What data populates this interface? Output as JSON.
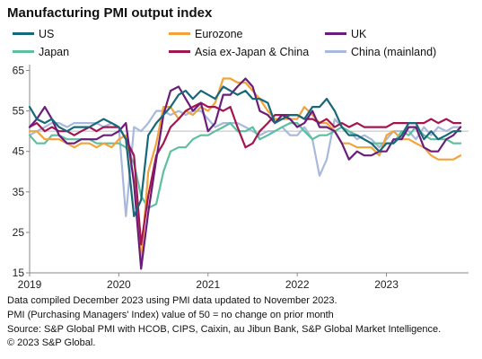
{
  "title": "Manufacturing PMI output index",
  "chart_data": {
    "type": "line",
    "title": "Manufacturing PMI output index",
    "xlabel": "",
    "ylabel": "",
    "x_ticks": [
      "2019",
      "2020",
      "2021",
      "2022",
      "2023"
    ],
    "y_ticks": [
      15,
      25,
      35,
      45,
      55,
      65
    ],
    "ylim": [
      15,
      66
    ],
    "xlim": [
      2019.0,
      2023.92
    ],
    "reference_line": 50,
    "grid": false,
    "legend_position": "top",
    "series": [
      {
        "name": "US",
        "color": "#17687a",
        "x": [
          2019.0,
          2019.08,
          2019.17,
          2019.25,
          2019.33,
          2019.42,
          2019.5,
          2019.58,
          2019.67,
          2019.75,
          2019.83,
          2019.92,
          2020.0,
          2020.08,
          2020.17,
          2020.25,
          2020.33,
          2020.42,
          2020.5,
          2020.58,
          2020.67,
          2020.75,
          2020.83,
          2020.92,
          2021.0,
          2021.08,
          2021.17,
          2021.25,
          2021.33,
          2021.42,
          2021.5,
          2021.58,
          2021.67,
          2021.75,
          2021.83,
          2021.92,
          2022.0,
          2022.08,
          2022.17,
          2022.25,
          2022.33,
          2022.42,
          2022.5,
          2022.58,
          2022.67,
          2022.75,
          2022.83,
          2022.92,
          2023.0,
          2023.08,
          2023.17,
          2023.25,
          2023.33,
          2023.42,
          2023.5,
          2023.58,
          2023.67,
          2023.75,
          2023.83
        ],
        "values": [
          56,
          53,
          52,
          53,
          51,
          50,
          51,
          51,
          51,
          52,
          53,
          52,
          51,
          48,
          29,
          33,
          49,
          52,
          54,
          56,
          59,
          60,
          58,
          60,
          59,
          58,
          61,
          60,
          59,
          60,
          58,
          58,
          57,
          52,
          53,
          54,
          54,
          53,
          56,
          56,
          58,
          55,
          51,
          49,
          49,
          48,
          47,
          45,
          47,
          47,
          49,
          52,
          52,
          48,
          50,
          48,
          49,
          50,
          50
        ]
      },
      {
        "name": "Eurozone",
        "color": "#f2a33a",
        "x": [
          2019.0,
          2019.08,
          2019.17,
          2019.25,
          2019.33,
          2019.42,
          2019.5,
          2019.58,
          2019.67,
          2019.75,
          2019.83,
          2019.92,
          2020.0,
          2020.08,
          2020.17,
          2020.25,
          2020.33,
          2020.42,
          2020.5,
          2020.58,
          2020.67,
          2020.75,
          2020.83,
          2020.92,
          2021.0,
          2021.08,
          2021.17,
          2021.25,
          2021.33,
          2021.42,
          2021.5,
          2021.58,
          2021.67,
          2021.75,
          2021.83,
          2021.92,
          2022.0,
          2022.08,
          2022.17,
          2022.25,
          2022.33,
          2022.42,
          2022.5,
          2022.58,
          2022.67,
          2022.75,
          2022.83,
          2022.92,
          2023.0,
          2023.08,
          2023.17,
          2023.25,
          2023.33,
          2023.42,
          2023.5,
          2023.58,
          2023.67,
          2023.75,
          2023.83
        ],
        "values": [
          50,
          50,
          48,
          48,
          48,
          47,
          46,
          47,
          47,
          46,
          47,
          46,
          48,
          49,
          38,
          18,
          40,
          47,
          56,
          56,
          53,
          55,
          54,
          56,
          55,
          57,
          63,
          63,
          62,
          62,
          60,
          58,
          55,
          53,
          53,
          53,
          53,
          56,
          54,
          52,
          52,
          50,
          47,
          47,
          46,
          46,
          46,
          44,
          49,
          50,
          48,
          48,
          47,
          46,
          44,
          43,
          43,
          43,
          44
        ]
      },
      {
        "name": "UK",
        "color": "#6b1d7c",
        "x": [
          2019.0,
          2019.08,
          2019.17,
          2019.25,
          2019.33,
          2019.42,
          2019.5,
          2019.58,
          2019.67,
          2019.75,
          2019.83,
          2019.92,
          2020.0,
          2020.08,
          2020.17,
          2020.25,
          2020.33,
          2020.42,
          2020.5,
          2020.58,
          2020.67,
          2020.75,
          2020.83,
          2020.92,
          2021.0,
          2021.08,
          2021.17,
          2021.25,
          2021.33,
          2021.42,
          2021.5,
          2021.58,
          2021.67,
          2021.75,
          2021.83,
          2021.92,
          2022.0,
          2022.08,
          2022.17,
          2022.25,
          2022.33,
          2022.42,
          2022.5,
          2022.58,
          2022.67,
          2022.75,
          2022.83,
          2022.92,
          2023.0,
          2023.08,
          2023.17,
          2023.25,
          2023.33,
          2023.42,
          2023.5,
          2023.58,
          2023.67,
          2023.75,
          2023.83
        ],
        "values": [
          51,
          53,
          56,
          53,
          49,
          47,
          47,
          48,
          48,
          48,
          49,
          49,
          50,
          52,
          37,
          16,
          30,
          43,
          54,
          60,
          61,
          58,
          55,
          57,
          50,
          52,
          59,
          59,
          61,
          63,
          61,
          55,
          54,
          52,
          54,
          53,
          51,
          52,
          55,
          51,
          51,
          50,
          47,
          43,
          45,
          44,
          44,
          45,
          45,
          48,
          48,
          51,
          51,
          46,
          45,
          45,
          48,
          49,
          51
        ]
      },
      {
        "name": "Japan",
        "color": "#5cbf9f",
        "x": [
          2019.0,
          2019.08,
          2019.17,
          2019.25,
          2019.33,
          2019.42,
          2019.5,
          2019.58,
          2019.67,
          2019.75,
          2019.83,
          2019.92,
          2020.0,
          2020.08,
          2020.17,
          2020.25,
          2020.33,
          2020.42,
          2020.5,
          2020.58,
          2020.67,
          2020.75,
          2020.83,
          2020.92,
          2021.0,
          2021.08,
          2021.17,
          2021.25,
          2021.33,
          2021.42,
          2021.5,
          2021.58,
          2021.67,
          2021.75,
          2021.83,
          2021.92,
          2022.0,
          2022.08,
          2022.17,
          2022.25,
          2022.33,
          2022.42,
          2022.5,
          2022.58,
          2022.67,
          2022.75,
          2022.83,
          2022.92,
          2023.0,
          2023.08,
          2023.17,
          2023.25,
          2023.33,
          2023.42,
          2023.5,
          2023.58,
          2023.67,
          2023.75,
          2023.83
        ],
        "values": [
          49,
          47,
          47,
          49,
          49,
          48,
          48,
          48,
          48,
          47,
          47,
          47,
          47,
          46,
          42,
          34,
          31,
          32,
          40,
          45,
          46,
          46,
          48,
          49,
          49,
          50,
          51,
          52,
          50,
          50,
          51,
          48,
          49,
          50,
          51,
          52,
          52,
          50,
          48,
          49,
          49,
          50,
          51,
          50,
          49,
          48,
          47,
          47,
          47,
          47,
          50,
          49,
          51,
          49,
          48,
          48,
          48,
          47,
          47
        ]
      },
      {
        "name": "Asia ex-Japan & China",
        "color": "#a3154f",
        "x": [
          2019.0,
          2019.08,
          2019.17,
          2019.25,
          2019.33,
          2019.42,
          2019.5,
          2019.58,
          2019.67,
          2019.75,
          2019.83,
          2019.92,
          2020.0,
          2020.08,
          2020.17,
          2020.25,
          2020.33,
          2020.42,
          2020.5,
          2020.58,
          2020.67,
          2020.75,
          2020.83,
          2020.92,
          2021.0,
          2021.08,
          2021.17,
          2021.25,
          2021.33,
          2021.42,
          2021.5,
          2021.58,
          2021.67,
          2021.75,
          2021.83,
          2021.92,
          2022.0,
          2022.08,
          2022.17,
          2022.25,
          2022.33,
          2022.42,
          2022.5,
          2022.58,
          2022.67,
          2022.75,
          2022.83,
          2022.92,
          2023.0,
          2023.08,
          2023.17,
          2023.25,
          2023.33,
          2023.42,
          2023.5,
          2023.58,
          2023.67,
          2023.75,
          2023.83
        ],
        "values": [
          51,
          52,
          50,
          51,
          50,
          50,
          49,
          50,
          51,
          50,
          51,
          51,
          51,
          48,
          44,
          22,
          34,
          44,
          47,
          51,
          53,
          55,
          56,
          57,
          56,
          56,
          55,
          56,
          51,
          46,
          47,
          50,
          52,
          54,
          54,
          54,
          54,
          53,
          53,
          52,
          53,
          51,
          52,
          51,
          52,
          51,
          51,
          51,
          51,
          52,
          52,
          52,
          52,
          52,
          53,
          52,
          53,
          52,
          52
        ]
      },
      {
        "name": "China (mainland)",
        "color": "#a9b9dc",
        "x": [
          2019.0,
          2019.08,
          2019.17,
          2019.25,
          2019.33,
          2019.42,
          2019.5,
          2019.58,
          2019.67,
          2019.75,
          2019.83,
          2019.92,
          2020.0,
          2020.08,
          2020.17,
          2020.25,
          2020.33,
          2020.42,
          2020.5,
          2020.58,
          2020.67,
          2020.75,
          2020.83,
          2020.92,
          2021.0,
          2021.08,
          2021.17,
          2021.25,
          2021.33,
          2021.42,
          2021.5,
          2021.58,
          2021.67,
          2021.75,
          2021.83,
          2021.92,
          2022.0,
          2022.08,
          2022.17,
          2022.25,
          2022.33,
          2022.42,
          2022.5,
          2022.58,
          2022.67,
          2022.75,
          2022.83,
          2022.92,
          2023.0,
          2023.08,
          2023.17,
          2023.25,
          2023.33,
          2023.42,
          2023.5,
          2023.58,
          2023.67,
          2023.75,
          2023.83
        ],
        "values": [
          49,
          50,
          51,
          52,
          52,
          51,
          52,
          52,
          52,
          52,
          51,
          52,
          51,
          29,
          51,
          50,
          52,
          55,
          55,
          54,
          55,
          54,
          55,
          55,
          53,
          51,
          52,
          52,
          52,
          51,
          50,
          49,
          50,
          50,
          51,
          49,
          49,
          51,
          48,
          39,
          43,
          53,
          51,
          50,
          48,
          49,
          48,
          46,
          48,
          50,
          50,
          50,
          48,
          51,
          49,
          51,
          50,
          51,
          51
        ]
      }
    ]
  },
  "notes": [
    "Data compiled December 2023 using PMI data updated to November 2023.",
    "PMI (Purchasing Managers' Index) value of 50 = no change on prior month",
    "Source: S&P Global PMI with HCOB, CIPS, Caixin, au Jibun Bank, S&P Global Market Intelligence.",
    "© 2023 S&P Global."
  ]
}
